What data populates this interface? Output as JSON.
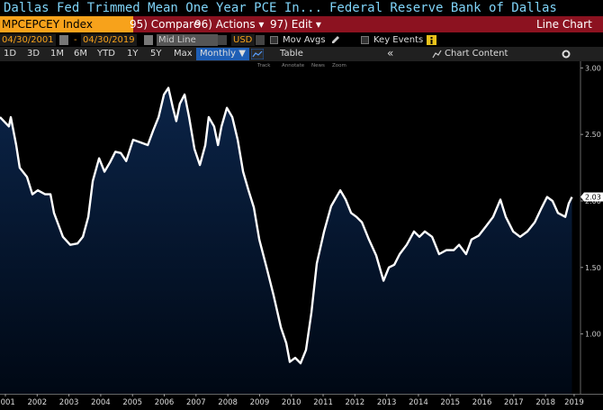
{
  "header": {
    "title": "Dallas Fed Trimmed Mean One Year PCE In...",
    "source": "Federal Reserve Bank of Dallas"
  },
  "toolbar": {
    "ticker": "MPCEPCEY Index",
    "buttons": [
      "95) Compare",
      "96) Actions ▾",
      "97) Edit ▾"
    ],
    "view": "Line Chart"
  },
  "controls": {
    "start_date": "04/30/2001",
    "separator": "-",
    "end_date": "04/30/2019",
    "line_mode": "Mid Line",
    "currency": "USD",
    "mov_avgs": "Mov Avgs",
    "key_events": "Key Events"
  },
  "periods": [
    "1D",
    "3D",
    "1M",
    "6M",
    "YTD",
    "1Y",
    "5Y",
    "Max"
  ],
  "frequency": "Monthly ▼",
  "table": "Table",
  "collapse": "«",
  "chart_content": "Chart Content",
  "chart_tools": [
    "Track",
    "Annotate",
    "News",
    "Zoom"
  ],
  "chart_data": {
    "type": "area-line",
    "x": [
      2001.33,
      2001.61,
      2001.67,
      2001.84,
      2001.95,
      2002.18,
      2002.35,
      2002.52,
      2002.75,
      2002.92,
      2003.03,
      2003.31,
      2003.54,
      2003.77,
      2003.94,
      2004.11,
      2004.25,
      2004.45,
      2004.62,
      2004.79,
      2004.96,
      2005.13,
      2005.3,
      2005.52,
      2005.75,
      2005.98,
      2006.15,
      2006.32,
      2006.49,
      2006.63,
      2006.77,
      2006.88,
      2006.99,
      2007.14,
      2007.28,
      2007.45,
      2007.62,
      2007.79,
      2007.9,
      2008.07,
      2008.19,
      2008.3,
      2008.47,
      2008.64,
      2008.81,
      2008.98,
      2009.15,
      2009.32,
      2009.49,
      2009.72,
      2009.94,
      2010.17,
      2010.34,
      2010.45,
      2010.62,
      2010.79,
      2010.96,
      2011.13,
      2011.3,
      2011.53,
      2011.75,
      2012.04,
      2012.21,
      2012.38,
      2012.55,
      2012.72,
      2012.94,
      2013.17,
      2013.4,
      2013.57,
      2013.74,
      2013.91,
      2014.13,
      2014.36,
      2014.53,
      2014.7,
      2014.93,
      2015.15,
      2015.38,
      2015.61,
      2015.78,
      2016.0,
      2016.17,
      2016.4,
      2016.63,
      2016.85,
      2017.08,
      2017.25,
      2017.48,
      2017.7,
      2017.93,
      2018.16,
      2018.38,
      2018.55,
      2018.72,
      2018.89,
      2019.12,
      2019.23,
      2019.33
    ],
    "series": [
      {
        "color": "#ffffff",
        "fill": "#0b2448",
        "values": [
          2.63,
          2.56,
          2.63,
          2.42,
          2.25,
          2.18,
          2.05,
          2.08,
          2.05,
          2.05,
          1.91,
          1.73,
          1.67,
          1.68,
          1.73,
          1.88,
          2.15,
          2.32,
          2.22,
          2.29,
          2.37,
          2.36,
          2.3,
          2.46,
          2.44,
          2.42,
          2.53,
          2.63,
          2.8,
          2.85,
          2.7,
          2.6,
          2.73,
          2.8,
          2.63,
          2.39,
          2.27,
          2.42,
          2.63,
          2.56,
          2.42,
          2.56,
          2.7,
          2.63,
          2.46,
          2.22,
          2.08,
          1.95,
          1.71,
          1.5,
          1.29,
          1.05,
          0.93,
          0.79,
          0.82,
          0.78,
          0.88,
          1.16,
          1.53,
          1.77,
          1.96,
          2.08,
          2.01,
          1.91,
          1.88,
          1.84,
          1.71,
          1.59,
          1.4,
          1.5,
          1.52,
          1.6,
          1.67,
          1.77,
          1.73,
          1.77,
          1.73,
          1.6,
          1.63,
          1.63,
          1.67,
          1.6,
          1.71,
          1.74,
          1.81,
          1.88,
          2.01,
          1.88,
          1.77,
          1.73,
          1.77,
          1.84,
          1.95,
          2.03,
          2.0,
          1.91,
          1.88,
          1.98,
          2.03
        ]
      }
    ],
    "xlim": [
      2001.33,
      2019.6
    ],
    "ylim": [
      0.55,
      3.05
    ],
    "xticks": [
      {
        "value": 2001.5,
        "label": "2001"
      },
      {
        "value": 2002.5,
        "label": "2002"
      },
      {
        "value": 2003.5,
        "label": "2003"
      },
      {
        "value": 2004.5,
        "label": "2004"
      },
      {
        "value": 2005.5,
        "label": "2005"
      },
      {
        "value": 2006.5,
        "label": "2006"
      },
      {
        "value": 2007.5,
        "label": "2007"
      },
      {
        "value": 2008.5,
        "label": "2008"
      },
      {
        "value": 2009.5,
        "label": "2009"
      },
      {
        "value": 2010.5,
        "label": "2010"
      },
      {
        "value": 2011.5,
        "label": "2011"
      },
      {
        "value": 2012.5,
        "label": "2012"
      },
      {
        "value": 2013.5,
        "label": "2013"
      },
      {
        "value": 2014.5,
        "label": "2014"
      },
      {
        "value": 2015.5,
        "label": "2015"
      },
      {
        "value": 2016.5,
        "label": "2016"
      },
      {
        "value": 2017.5,
        "label": "2017"
      },
      {
        "value": 2018.5,
        "label": "2018"
      },
      {
        "value": 2019.4,
        "label": "2019"
      }
    ],
    "yticks": [
      {
        "value": 1,
        "label": "1.00"
      },
      {
        "value": 1.5,
        "label": "1.50"
      },
      {
        "value": 2,
        "label": "2.00"
      },
      {
        "value": 2.5,
        "label": "2.50"
      },
      {
        "value": 3,
        "label": "3.00"
      }
    ],
    "last_value_marker": true
  }
}
